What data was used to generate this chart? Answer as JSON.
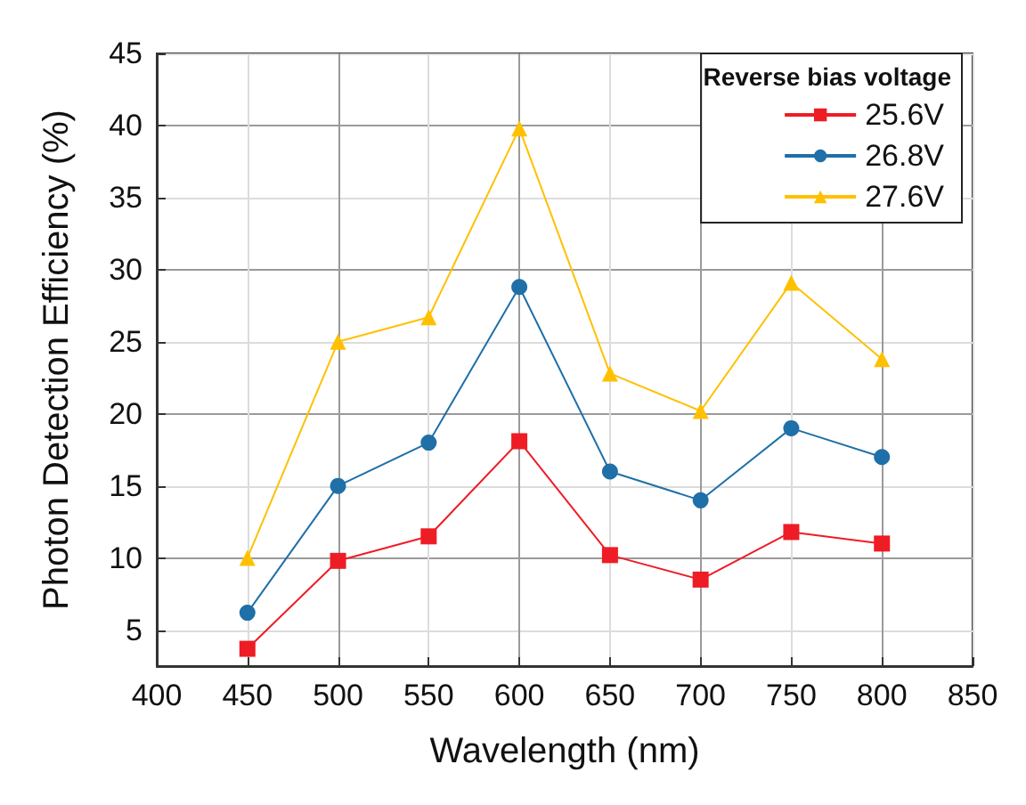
{
  "chart_data": {
    "type": "line",
    "xlabel": "Wavelength (nm)",
    "ylabel": "Photon Detection Efficiency (%)",
    "legend_title": "Reverse bias voltage",
    "x": [
      450,
      500,
      550,
      600,
      650,
      700,
      750,
      800
    ],
    "series": [
      {
        "name": "25.6V",
        "color": "#ee1c25",
        "marker": "square",
        "values": [
          3.7,
          9.8,
          11.5,
          18.1,
          10.2,
          8.5,
          11.8,
          11.0
        ]
      },
      {
        "name": "26.8V",
        "color": "#1f6fa8",
        "marker": "circle",
        "values": [
          6.2,
          15.0,
          18.0,
          28.8,
          16.0,
          14.0,
          19.0,
          17.0
        ]
      },
      {
        "name": "27.6V",
        "color": "#ffc000",
        "marker": "triangle",
        "values": [
          10.0,
          25.0,
          26.7,
          39.8,
          22.8,
          20.2,
          29.1,
          23.8
        ]
      }
    ],
    "xlim": [
      400,
      850
    ],
    "xticks": [
      400,
      450,
      500,
      550,
      600,
      650,
      700,
      750,
      800,
      850
    ],
    "ylim": [
      2.5,
      45
    ],
    "yticks": [
      5,
      10,
      15,
      20,
      25,
      30,
      35,
      40,
      45
    ],
    "grid": true,
    "legend": "top right"
  }
}
